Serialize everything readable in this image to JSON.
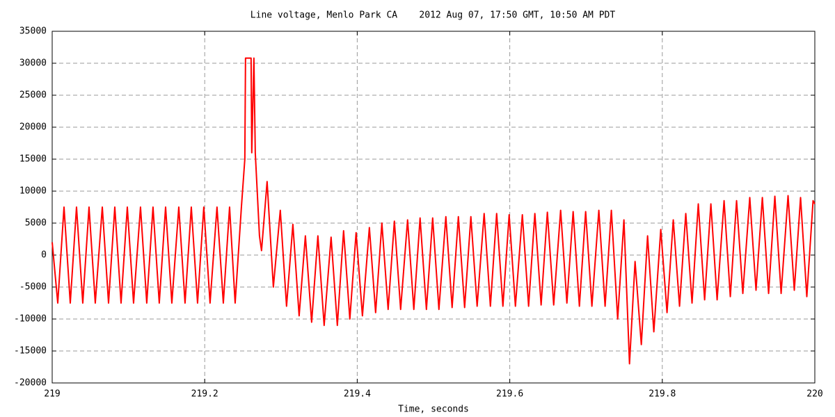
{
  "chart_data": {
    "type": "line",
    "title": "Line voltage, Menlo Park CA    2012 Aug 07, 17:50 GMT, 10:50 AM PDT",
    "xlabel": "Time, seconds",
    "xlim": [
      219,
      220
    ],
    "xticks": [
      219,
      219.2,
      219.4,
      219.6,
      219.8,
      220
    ],
    "ylim": [
      -20000,
      35000
    ],
    "yticks": [
      -20000,
      -15000,
      -10000,
      -5000,
      0,
      5000,
      10000,
      15000,
      20000,
      25000,
      30000,
      35000
    ],
    "grid": true,
    "x": [
      219.0,
      219.0073,
      219.0155,
      219.0237,
      219.0319,
      219.0401,
      219.0483,
      219.0565,
      219.0657,
      219.0739,
      219.0821,
      219.0903,
      219.0985,
      219.1067,
      219.1158,
      219.124,
      219.1322,
      219.1404,
      219.1487,
      219.1569,
      219.166,
      219.1742,
      219.1824,
      219.1906,
      219.1988,
      219.207,
      219.2161,
      219.2244,
      219.2326,
      219.2399,
      219.2481,
      219.2526,
      219.2535,
      219.2608,
      219.2617,
      219.2645,
      219.2663,
      219.2718,
      219.2745,
      219.2818,
      219.29,
      219.2991,
      219.3073,
      219.3156,
      219.3238,
      219.332,
      219.3402,
      219.3484,
      219.3566,
      219.3657,
      219.3739,
      219.3821,
      219.3903,
      219.3985,
      219.4068,
      219.4159,
      219.4241,
      219.4323,
      219.4405,
      219.4487,
      219.4569,
      219.466,
      219.4742,
      219.4824,
      219.4907,
      219.4989,
      219.5071,
      219.5162,
      219.5244,
      219.5326,
      219.5408,
      219.549,
      219.5572,
      219.5664,
      219.5746,
      219.5828,
      219.591,
      219.5992,
      219.6074,
      219.6165,
      219.6247,
      219.6329,
      219.6411,
      219.6493,
      219.6576,
      219.6667,
      219.6749,
      219.6831,
      219.6913,
      219.6995,
      219.7077,
      219.7168,
      219.725,
      219.7332,
      219.7415,
      219.7497,
      219.757,
      219.7643,
      219.7725,
      219.7807,
      219.7889,
      219.798,
      219.8062,
      219.8144,
      219.8226,
      219.8308,
      219.839,
      219.8472,
      219.8555,
      219.8637,
      219.8719,
      219.881,
      219.8892,
      219.8974,
      219.9056,
      219.9147,
      219.9229,
      219.9312,
      219.9394,
      219.9476,
      219.9558,
      219.9649,
      219.9731,
      219.9813,
      219.9895,
      219.9977,
      220.0
    ],
    "series": [
      {
        "color": "#ff0000",
        "values": [
          2000,
          -7500,
          7500,
          -7500,
          7500,
          -7500,
          7500,
          -7500,
          7500,
          -7500,
          7500,
          -7500,
          7500,
          -7500,
          7500,
          -7500,
          7500,
          -7500,
          7500,
          -7500,
          7500,
          -7500,
          7500,
          -7500,
          7500,
          -7500,
          7500,
          -7500,
          7500,
          -7500,
          7500,
          15000,
          30800,
          30800,
          16000,
          30800,
          16000,
          3000,
          700,
          11500,
          -5000,
          7000,
          -8000,
          4800,
          -9500,
          3000,
          -10500,
          3000,
          -11000,
          2800,
          -11000,
          3800,
          -10000,
          3500,
          -9500,
          4300,
          -9000,
          5000,
          -8500,
          5300,
          -8500,
          5500,
          -8500,
          5800,
          -8500,
          5800,
          -8500,
          6000,
          -8200,
          6000,
          -8200,
          6000,
          -8000,
          6500,
          -8000,
          6500,
          -8000,
          6300,
          -8000,
          6300,
          -8000,
          6500,
          -7800,
          6700,
          -7800,
          7000,
          -7500,
          6800,
          -8000,
          6800,
          -8000,
          7000,
          -8000,
          7000,
          -10000,
          5500,
          -17000,
          -1000,
          -14000,
          3000,
          -12000,
          4000,
          -9000,
          5500,
          -8000,
          6500,
          -7500,
          8000,
          -7000,
          8000,
          -7000,
          8500,
          -6500,
          8500,
          -6000,
          9000,
          -5500,
          9000,
          -6000,
          9200,
          -6000,
          9300,
          -5500,
          9000,
          -6500,
          8500,
          8000
        ]
      }
    ]
  }
}
